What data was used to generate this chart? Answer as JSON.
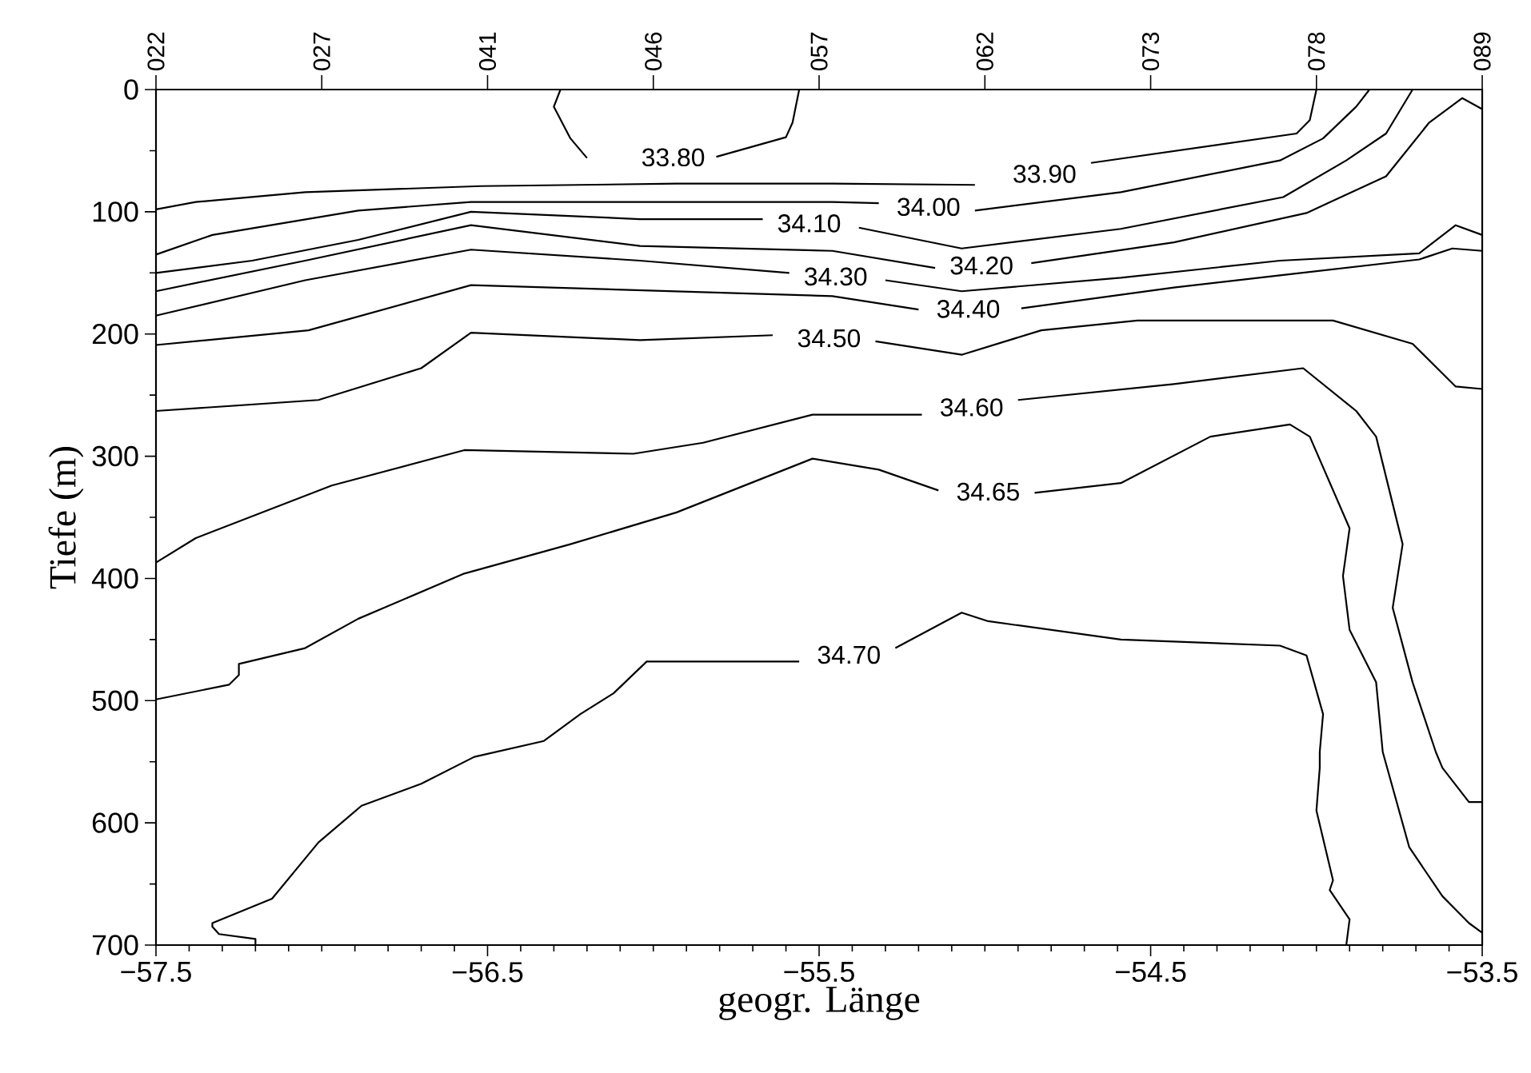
{
  "chart_data": {
    "type": "line",
    "xlabel": "geogr. Länge",
    "ylabel": "Tiefe (m)",
    "xlim": [
      -57.5,
      -53.5
    ],
    "ylim": [
      700,
      0
    ],
    "xticks": [
      {
        "value": -57.5,
        "label": "−57.5"
      },
      {
        "value": -56.5,
        "label": "−56.5"
      },
      {
        "value": -55.5,
        "label": "−55.5"
      },
      {
        "value": -54.5,
        "label": "−54.5"
      },
      {
        "value": -53.5,
        "label": "−53.5"
      }
    ],
    "yticks": [
      0,
      100,
      200,
      300,
      400,
      500,
      600,
      700
    ],
    "annotations": [
      "022",
      "027",
      "041",
      "046",
      "057",
      "062",
      "073",
      "078",
      "089"
    ],
    "series": [
      {
        "name": "33.80",
        "color": "#000000",
        "x": [
          -56.28,
          -56.3,
          -56.25,
          -56.2,
          -55.94,
          -55.81,
          -55.6,
          -55.58,
          -55.56
        ],
        "values": [
          0,
          14,
          40,
          56,
          null,
          55,
          39,
          27,
          0
        ]
      },
      {
        "name": "33.90",
        "color": "#000000",
        "x": [
          -57.5,
          -57.38,
          -57.05,
          -56.52,
          -55.93,
          -55.46,
          -55.03,
          -54.82,
          -54.68,
          -54.06,
          -54.02,
          -54.0
        ],
        "values": [
          98,
          92,
          84,
          79,
          77,
          77,
          78,
          null,
          60,
          36,
          25,
          0
        ]
      },
      {
        "name": "34.00",
        "color": "#000000",
        "x": [
          -57.5,
          -57.33,
          -56.89,
          -56.55,
          -55.46,
          -55.32,
          -55.17,
          -55.03,
          -54.59,
          -54.11,
          -53.98,
          -53.88,
          -53.84
        ],
        "values": [
          135,
          119,
          99,
          92,
          92,
          93,
          null,
          99,
          84,
          58,
          40,
          14,
          0
        ]
      },
      {
        "name": "34.10",
        "color": "#000000",
        "x": [
          -57.5,
          -57.21,
          -56.89,
          -56.55,
          -56.04,
          -55.67,
          -55.53,
          -55.38,
          -55.07,
          -54.59,
          -54.1,
          -53.91,
          -53.79,
          -53.71
        ],
        "values": [
          150,
          140,
          123,
          100,
          106,
          106,
          null,
          113,
          130,
          114,
          88,
          58,
          36,
          0
        ]
      },
      {
        "name": "34.20",
        "color": "#000000",
        "x": [
          -57.5,
          -57.05,
          -56.55,
          -56.04,
          -55.46,
          -55.15,
          -55.01,
          -54.86,
          -54.43,
          -54.03,
          -53.79,
          -53.66,
          -53.56,
          -53.5
        ],
        "values": [
          165,
          140,
          111,
          128,
          132,
          146,
          null,
          142,
          125,
          101,
          71,
          27,
          7,
          16
        ]
      },
      {
        "name": "34.30",
        "color": "#000000",
        "x": [
          -57.5,
          -57.05,
          -56.55,
          -56.04,
          -55.59,
          -55.45,
          -55.3,
          -55.07,
          -54.59,
          -54.11,
          -53.69,
          -53.58,
          -53.5
        ],
        "values": [
          185,
          156,
          131,
          140,
          150,
          null,
          156,
          165,
          154,
          140,
          134,
          111,
          119
        ]
      },
      {
        "name": "34.40",
        "color": "#000000",
        "x": [
          -57.5,
          -57.04,
          -56.55,
          -55.46,
          -55.2,
          -55.05,
          -54.89,
          -54.43,
          -54.11,
          -53.69,
          -53.59,
          -53.5
        ],
        "values": [
          209,
          197,
          160,
          169,
          180,
          null,
          179,
          162,
          152,
          139,
          130,
          132
        ]
      },
      {
        "name": "34.50",
        "color": "#000000",
        "x": [
          -57.5,
          -57.01,
          -56.7,
          -56.55,
          -56.04,
          -55.64,
          -55.47,
          -55.33,
          -55.07,
          -54.83,
          -54.54,
          -53.95,
          -53.71,
          -53.58,
          -53.5
        ],
        "values": [
          263,
          254,
          228,
          199,
          205,
          201,
          null,
          206,
          217,
          197,
          189,
          189,
          208,
          243,
          245
        ]
      },
      {
        "name": "34.60",
        "color": "#000000",
        "x": [
          -57.5,
          -57.38,
          -56.97,
          -56.57,
          -56.06,
          -55.85,
          -55.52,
          -55.19,
          -55.04,
          -54.9,
          -54.43,
          -54.04,
          -53.88,
          -53.82,
          -53.74,
          -53.77,
          -53.71,
          -53.64,
          -53.62,
          -53.54,
          -53.5
        ],
        "values": [
          387,
          367,
          324,
          295,
          298,
          289,
          266,
          266,
          null,
          254,
          241,
          228,
          263,
          284,
          372,
          424,
          485,
          542,
          555,
          583,
          583
        ]
      },
      {
        "name": "34.65",
        "color": "#000000",
        "x": [
          -57.5,
          -57.28,
          -57.25,
          -57.25,
          -57.05,
          -56.89,
          -56.57,
          -56.25,
          -55.93,
          -55.52,
          -55.32,
          -55.14,
          -54.99,
          -54.85,
          -54.59,
          -54.32,
          -54.08,
          -54.02,
          -53.9,
          -53.92,
          -53.9,
          -53.82,
          -53.8,
          -53.72,
          -53.62,
          -53.54,
          -53.5
        ],
        "values": [
          499,
          487,
          479,
          470,
          457,
          433,
          396,
          372,
          346,
          302,
          311,
          328,
          null,
          330,
          322,
          284,
          274,
          284,
          359,
          398,
          442,
          485,
          542,
          620,
          660,
          682,
          690
        ]
      },
      {
        "name": "34.70",
        "color": "#000000",
        "x": [
          -57.2,
          -57.2,
          -57.31,
          -57.33,
          -57.33,
          -57.15,
          -57.01,
          -56.88,
          -56.7,
          -56.54,
          -56.33,
          -56.22,
          -56.12,
          -56.02,
          -55.56,
          -55.41,
          -55.27,
          -55.07,
          -54.99,
          -54.59,
          -54.11,
          -54.03,
          -53.98,
          -53.99,
          -53.99,
          -54.0,
          -53.95,
          -53.96,
          -53.9,
          -53.91
        ],
        "values": [
          700,
          695,
          691,
          685,
          682,
          662,
          616,
          586,
          568,
          546,
          533,
          511,
          494,
          468,
          468,
          null,
          457,
          428,
          435,
          450,
          455,
          463,
          511,
          542,
          555,
          590,
          647,
          655,
          679,
          700
        ]
      }
    ]
  }
}
